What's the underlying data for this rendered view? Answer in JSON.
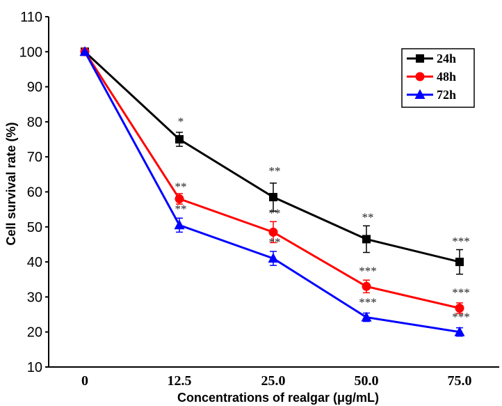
{
  "chart_data": {
    "type": "line",
    "title": "",
    "xlabel": "Concentrations of realgar (μg/mL)",
    "ylabel": "Cell survival rate (%)",
    "categories": [
      "0",
      "12.5",
      "25.0",
      "50.0",
      "75.0"
    ],
    "ylim": [
      10,
      110
    ],
    "yticks": [
      "10",
      "20",
      "30",
      "40",
      "50",
      "60",
      "70",
      "80",
      "90",
      "100",
      "110"
    ],
    "grid": false,
    "legend_position": "top-right",
    "series": [
      {
        "name": "24h",
        "color": "#000000",
        "marker": "square",
        "values": [
          100,
          75,
          58.5,
          46.5,
          40
        ],
        "errors": [
          0,
          2,
          4,
          3.8,
          3.5
        ],
        "significance": [
          "",
          "*",
          "**",
          "**",
          "***"
        ]
      },
      {
        "name": "48h",
        "color": "#ff0000",
        "marker": "circle",
        "values": [
          100,
          58,
          48.5,
          33,
          26.8
        ],
        "errors": [
          0,
          1.5,
          3,
          1.8,
          1.5
        ],
        "significance": [
          "",
          "**",
          "**",
          "***",
          "***"
        ]
      },
      {
        "name": "72h",
        "color": "#0000ff",
        "marker": "triangle",
        "values": [
          100,
          50.5,
          41,
          24.2,
          20
        ],
        "errors": [
          0,
          2,
          2,
          1.2,
          1.2
        ],
        "significance": [
          "",
          "**",
          "**",
          "***",
          "***"
        ]
      }
    ]
  }
}
